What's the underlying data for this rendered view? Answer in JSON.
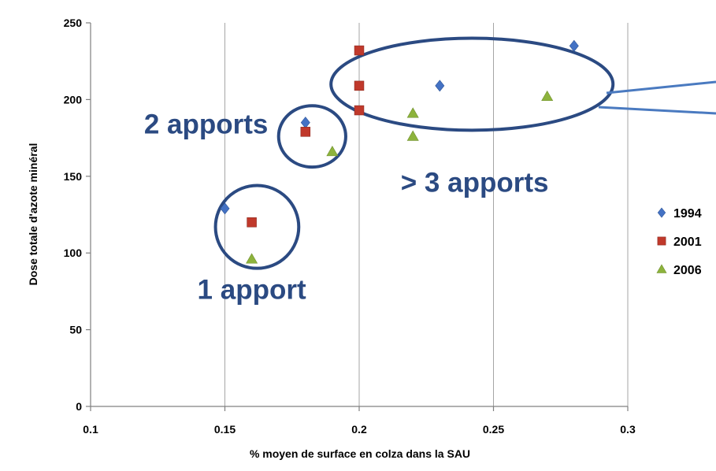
{
  "chart_data": {
    "type": "scatter",
    "xlabel": "% moyen de surface en colza dans la SAU",
    "ylabel": "Dose totale d'azote minéral",
    "xlim": [
      0.1,
      0.3
    ],
    "ylim": [
      0,
      250
    ],
    "x_ticks": [
      "0.1",
      "0.15",
      "0.2",
      "0.25",
      "0.3"
    ],
    "y_ticks": [
      "0",
      "50",
      "100",
      "150",
      "200",
      "250"
    ],
    "grid": "vertical",
    "legend_position": "right",
    "series": [
      {
        "name": "1994",
        "marker": "diamond",
        "color": "#4472c4",
        "points": [
          [
            0.15,
            129
          ],
          [
            0.18,
            185
          ],
          [
            0.23,
            209
          ],
          [
            0.28,
            235
          ]
        ]
      },
      {
        "name": "2001",
        "marker": "square",
        "color": "#c0392b",
        "points": [
          [
            0.16,
            120
          ],
          [
            0.18,
            179
          ],
          [
            0.2,
            193
          ],
          [
            0.2,
            209
          ],
          [
            0.2,
            232
          ]
        ]
      },
      {
        "name": "2006",
        "marker": "triangle",
        "color": "#8db33c",
        "points": [
          [
            0.16,
            96
          ],
          [
            0.19,
            166
          ],
          [
            0.22,
            176
          ],
          [
            0.22,
            191
          ],
          [
            0.27,
            202
          ]
        ]
      }
    ],
    "annotations": [
      {
        "text": "1 apport",
        "x": 0.16,
        "y": 70
      },
      {
        "text": "2 apports",
        "x": 0.143,
        "y": 178
      },
      {
        "text": "> 3 apports",
        "x": 0.243,
        "y": 140
      }
    ],
    "groups": [
      {
        "center": [
          0.162,
          117
        ],
        "radius": [
          0.0155,
          27
        ]
      },
      {
        "center": [
          0.1825,
          176
        ],
        "radius": [
          0.0125,
          20
        ]
      },
      {
        "center": [
          0.242,
          210
        ],
        "radius": [
          0.0525,
          30
        ]
      }
    ],
    "outline_color": "#2b4a82"
  }
}
